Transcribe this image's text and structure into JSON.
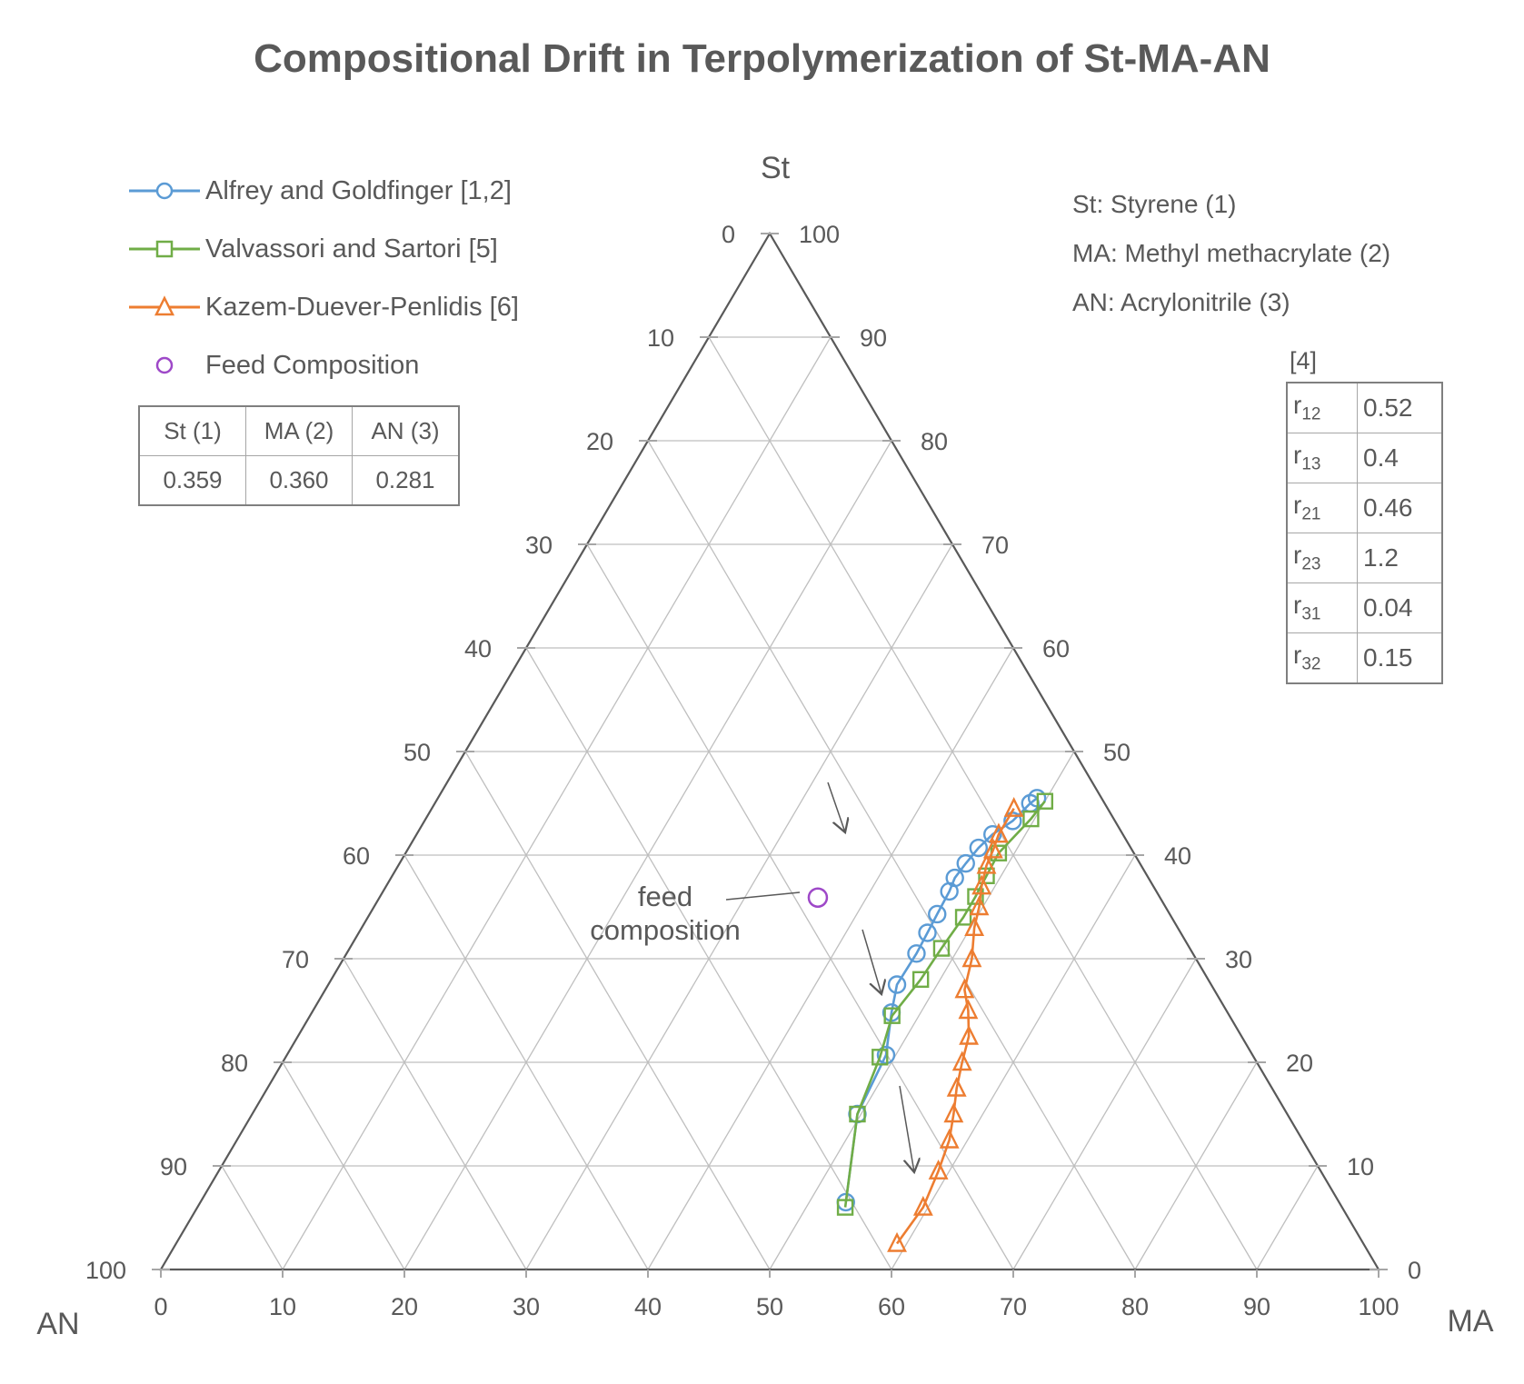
{
  "title": "Compositional Drift in Terpolymerization of St-MA-AN",
  "legend": {
    "items": [
      {
        "label": "Alfrey and Goldfinger [1,2]",
        "color": "#5b9bd5",
        "marker": "circle"
      },
      {
        "label": "Valvassori and Sartori [5]",
        "color": "#70ad47",
        "marker": "square"
      },
      {
        "label": "Kazem-Duever-Penlidis [6]",
        "color": "#ed7d31",
        "marker": "triangle"
      },
      {
        "label": "Feed Composition",
        "color": "#9e48c8",
        "marker": "circle"
      }
    ]
  },
  "feed_table": {
    "headers": [
      "St (1)",
      "MA (2)",
      "AN (3)"
    ],
    "values": [
      "0.359",
      "0.360",
      "0.281"
    ]
  },
  "definitions": [
    "St: Styrene (1)",
    "MA: Methyl methacrylate (2)",
    "AN: Acrylonitrile (3)"
  ],
  "ratios": {
    "reference": "[4]",
    "rows": [
      {
        "symbol": "r",
        "subscript": "12",
        "value": "0.52"
      },
      {
        "symbol": "r",
        "subscript": "13",
        "value": "0.4"
      },
      {
        "symbol": "r",
        "subscript": "21",
        "value": "0.46"
      },
      {
        "symbol": "r",
        "subscript": "23",
        "value": "1.2"
      },
      {
        "symbol": "r",
        "subscript": "31",
        "value": "0.04"
      },
      {
        "symbol": "r",
        "subscript": "32",
        "value": "0.15"
      }
    ]
  },
  "chart_data": {
    "type": "ternary",
    "title": "Compositional Drift in Terpolymerization of St-MA-AN",
    "axes": {
      "top": "St",
      "left": "AN",
      "right": "MA"
    },
    "ticks": [
      "0",
      "10",
      "20",
      "30",
      "40",
      "50",
      "60",
      "70",
      "80",
      "90",
      "100"
    ],
    "grid": true,
    "annotation": [
      "feed",
      "composition"
    ],
    "feed_point": {
      "St": 35.9,
      "MA": 36.0,
      "AN": 28.1
    },
    "series": [
      {
        "name": "Alfrey and Goldfinger [1,2]",
        "color": "#5b9bd5",
        "marker": "circle",
        "points": [
          {
            "St": 45.5,
            "MA": 49.2,
            "AN": 5.3
          },
          {
            "St": 45.0,
            "MA": 48.9,
            "AN": 6.1
          },
          {
            "St": 43.3,
            "MA": 48.3,
            "AN": 8.4
          },
          {
            "St": 42.0,
            "MA": 47.3,
            "AN": 10.7
          },
          {
            "St": 40.7,
            "MA": 46.8,
            "AN": 12.5
          },
          {
            "St": 39.2,
            "MA": 46.5,
            "AN": 14.3
          },
          {
            "St": 37.8,
            "MA": 46.3,
            "AN": 15.9
          },
          {
            "St": 36.5,
            "MA": 46.5,
            "AN": 17.0
          },
          {
            "St": 34.3,
            "MA": 46.6,
            "AN": 19.1
          },
          {
            "St": 32.5,
            "MA": 46.7,
            "AN": 20.8
          },
          {
            "St": 30.5,
            "MA": 46.8,
            "AN": 22.7
          },
          {
            "St": 27.5,
            "MA": 46.7,
            "AN": 25.8
          },
          {
            "St": 24.8,
            "MA": 47.6,
            "AN": 27.6
          },
          {
            "St": 20.7,
            "MA": 49.2,
            "AN": 30.1
          },
          {
            "St": 15.0,
            "MA": 49.7,
            "AN": 35.3
          },
          {
            "St": 6.5,
            "MA": 53.0,
            "AN": 40.5
          }
        ]
      },
      {
        "name": "Valvassori and Sartori [5]",
        "color": "#70ad47",
        "marker": "square",
        "points": [
          {
            "St": 45.2,
            "MA": 50.0,
            "AN": 4.8
          },
          {
            "St": 43.5,
            "MA": 49.7,
            "AN": 6.8
          },
          {
            "St": 40.2,
            "MA": 48.7,
            "AN": 11.1
          },
          {
            "St": 38.0,
            "MA": 48.8,
            "AN": 13.2
          },
          {
            "St": 36.0,
            "MA": 48.9,
            "AN": 15.1
          },
          {
            "St": 34.0,
            "MA": 48.9,
            "AN": 17.1
          },
          {
            "St": 31.0,
            "MA": 48.6,
            "AN": 20.4
          },
          {
            "St": 28.0,
            "MA": 48.4,
            "AN": 23.6
          },
          {
            "St": 24.5,
            "MA": 47.8,
            "AN": 27.7
          },
          {
            "St": 20.5,
            "MA": 48.8,
            "AN": 30.7
          },
          {
            "St": 15.0,
            "MA": 49.7,
            "AN": 35.3
          },
          {
            "St": 6.0,
            "MA": 53.2,
            "AN": 40.8
          }
        ]
      },
      {
        "name": "Kazem-Duever-Penlidis [6]",
        "color": "#ed7d31",
        "marker": "triangle",
        "points": [
          {
            "St": 44.5,
            "MA": 47.8,
            "AN": 7.7
          },
          {
            "St": 42.0,
            "MA": 47.8,
            "AN": 10.2
          },
          {
            "St": 40.5,
            "MA": 48.1,
            "AN": 11.4
          },
          {
            "St": 39.0,
            "MA": 48.3,
            "AN": 12.7
          },
          {
            "St": 37.0,
            "MA": 48.9,
            "AN": 14.1
          },
          {
            "St": 35.0,
            "MA": 49.7,
            "AN": 15.3
          },
          {
            "St": 33.0,
            "MA": 50.3,
            "AN": 16.7
          },
          {
            "St": 30.0,
            "MA": 51.6,
            "AN": 18.4
          },
          {
            "St": 27.0,
            "MA": 52.5,
            "AN": 20.5
          },
          {
            "St": 25.0,
            "MA": 53.8,
            "AN": 21.2
          },
          {
            "St": 22.5,
            "MA": 55.1,
            "AN": 22.4
          },
          {
            "St": 20.0,
            "MA": 55.8,
            "AN": 24.2
          },
          {
            "St": 17.5,
            "MA": 56.6,
            "AN": 25.9
          },
          {
            "St": 15.0,
            "MA": 57.6,
            "AN": 27.4
          },
          {
            "St": 12.5,
            "MA": 58.5,
            "AN": 29.0
          },
          {
            "St": 9.5,
            "MA": 59.1,
            "AN": 31.4
          },
          {
            "St": 6.0,
            "MA": 59.6,
            "AN": 34.4
          },
          {
            "St": 2.5,
            "MA": 59.2,
            "AN": 38.3
          }
        ]
      }
    ]
  }
}
